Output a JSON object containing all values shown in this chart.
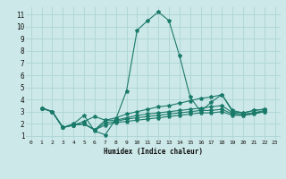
{
  "xlabel": "Humidex (Indice chaleur)",
  "bg_color": "#cce8e8",
  "grid_color": "#aed4d4",
  "line_color": "#1a7a6a",
  "series": [
    [
      3.3,
      3.0,
      1.7,
      2.0,
      2.7,
      1.4,
      1.1,
      2.4,
      4.7,
      9.7,
      10.5,
      11.2,
      10.5,
      7.6,
      4.2,
      3.0,
      3.8,
      4.4,
      3.1,
      2.9,
      3.1,
      3.2
    ],
    [
      3.3,
      3.0,
      1.7,
      1.9,
      2.2,
      2.6,
      2.3,
      2.5,
      2.8,
      3.0,
      3.2,
      3.4,
      3.5,
      3.7,
      3.9,
      4.1,
      4.2,
      4.4,
      3.0,
      2.9,
      3.1,
      3.2
    ],
    [
      3.3,
      3.0,
      1.7,
      1.9,
      2.0,
      1.5,
      2.3,
      2.3,
      2.5,
      2.7,
      2.8,
      2.9,
      3.0,
      3.1,
      3.2,
      3.3,
      3.4,
      3.5,
      2.9,
      2.8,
      2.9,
      3.1
    ],
    [
      3.3,
      3.0,
      1.7,
      1.9,
      2.0,
      1.5,
      2.1,
      2.2,
      2.4,
      2.5,
      2.6,
      2.7,
      2.8,
      2.9,
      3.0,
      3.1,
      3.1,
      3.2,
      2.8,
      2.7,
      2.9,
      3.0
    ],
    [
      3.3,
      3.0,
      1.7,
      1.9,
      2.0,
      1.5,
      1.9,
      2.1,
      2.2,
      2.3,
      2.4,
      2.5,
      2.6,
      2.7,
      2.8,
      2.9,
      2.9,
      3.0,
      2.7,
      2.7,
      2.8,
      3.0
    ]
  ],
  "x_start": 1,
  "ylim": [
    0.7,
    11.6
  ],
  "xlim": [
    -0.5,
    23.5
  ],
  "yticks": [
    1,
    2,
    3,
    4,
    5,
    6,
    7,
    8,
    9,
    10,
    11
  ],
  "xticks": [
    0,
    1,
    2,
    3,
    4,
    5,
    6,
    7,
    8,
    9,
    10,
    11,
    12,
    13,
    14,
    15,
    16,
    17,
    18,
    19,
    20,
    21,
    22,
    23
  ]
}
